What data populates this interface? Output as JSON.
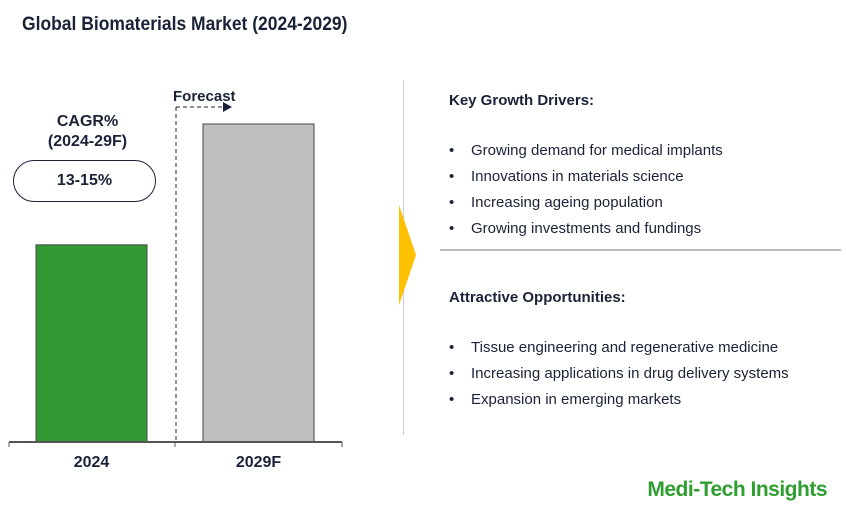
{
  "title": "Global Biomaterials Market (2024-2029)",
  "chart_data": {
    "type": "bar",
    "categories": [
      "2024",
      "2029F"
    ],
    "values": [
      62,
      100
    ],
    "value_note": "relative, no axis values shown",
    "colors": [
      "#339933",
      "#bfbfbf"
    ],
    "forecast_label": "Forecast",
    "cagr_label": "CAGR%",
    "cagr_period": "(2024-29F)",
    "cagr_value": "13-15%"
  },
  "drivers": {
    "heading": "Key Growth Drivers:",
    "items": [
      "Growing demand for medical implants",
      "Innovations in materials science",
      "Increasing ageing population",
      "Growing investments and fundings"
    ]
  },
  "opportunities": {
    "heading": "Attractive Opportunities:",
    "items": [
      "Tissue engineering and regenerative medicine",
      "Increasing applications in drug delivery systems",
      "Expansion in emerging markets"
    ]
  },
  "logo": "Medi-Tech Insights",
  "colors": {
    "accent": "#ffc000",
    "brand": "#2e9e2e"
  }
}
